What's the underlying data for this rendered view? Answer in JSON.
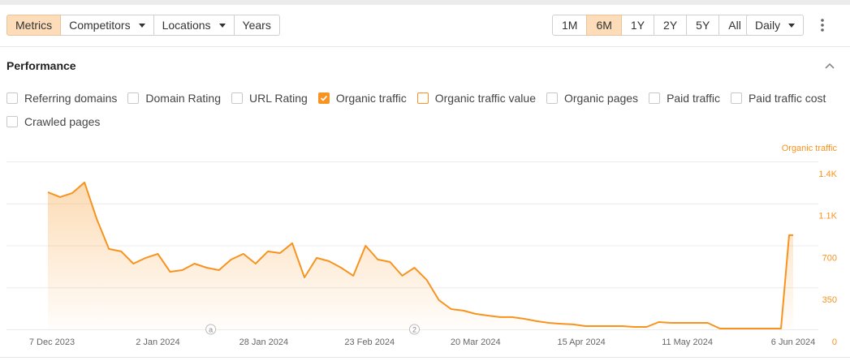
{
  "toolbar": {
    "tabs": [
      {
        "label": "Metrics",
        "active": true
      },
      {
        "label": "Competitors",
        "dropdown": true
      },
      {
        "label": "Locations",
        "dropdown": true
      },
      {
        "label": "Years"
      }
    ],
    "periods": [
      {
        "label": "1M"
      },
      {
        "label": "6M",
        "active": true
      },
      {
        "label": "1Y"
      },
      {
        "label": "2Y"
      },
      {
        "label": "5Y"
      },
      {
        "label": "All"
      }
    ],
    "interval": "Daily"
  },
  "section": {
    "title": "Performance"
  },
  "metrics": [
    {
      "label": "Referring domains",
      "checked": false
    },
    {
      "label": "Domain Rating",
      "checked": false
    },
    {
      "label": "URL Rating",
      "checked": false
    },
    {
      "label": "Organic traffic",
      "checked": true,
      "color": "#f7931e"
    },
    {
      "label": "Organic traffic value",
      "checked": false,
      "color": "#f7931e"
    },
    {
      "label": "Organic pages",
      "checked": false
    },
    {
      "label": "Paid traffic",
      "checked": false
    },
    {
      "label": "Paid traffic cost",
      "checked": false
    },
    {
      "label": "Crawled pages",
      "checked": false
    }
  ],
  "chart_data": {
    "type": "line",
    "y_label": "Organic traffic",
    "grid": true,
    "xlim": [
      "2023-12-06",
      "2024-06-06"
    ],
    "xticks": [
      {
        "value": "2023-12-07",
        "label": "7 Dec 2023"
      },
      {
        "value": "2024-01-02",
        "label": "2 Jan 2024"
      },
      {
        "value": "2024-01-28",
        "label": "28 Jan 2024"
      },
      {
        "value": "2024-02-23",
        "label": "23 Feb 2024"
      },
      {
        "value": "2024-03-20",
        "label": "20 Mar 2024"
      },
      {
        "value": "2024-04-15",
        "label": "15 Apr 2024"
      },
      {
        "value": "2024-05-11",
        "label": "11 May 2024"
      },
      {
        "value": "2024-06-06",
        "label": "6 Jun 2024"
      }
    ],
    "ylim": [
      0,
      1400
    ],
    "yticks": [
      0,
      350,
      700,
      {
        "value": 1050,
        "label": "1.1K"
      },
      {
        "value": 1400,
        "label": "1.4K"
      }
    ],
    "annotations": [
      {
        "x": "2024-01-15",
        "label": "a"
      },
      {
        "x": "2024-03-05",
        "label": "2"
      }
    ],
    "x": [
      "2023-12-06",
      "2023-12-09",
      "2023-12-12",
      "2023-12-15",
      "2023-12-18",
      "2023-12-21",
      "2023-12-24",
      "2023-12-27",
      "2023-12-30",
      "2024-01-02",
      "2024-01-05",
      "2024-01-08",
      "2024-01-11",
      "2024-01-14",
      "2024-01-17",
      "2024-01-20",
      "2024-01-23",
      "2024-01-26",
      "2024-01-29",
      "2024-02-01",
      "2024-02-04",
      "2024-02-07",
      "2024-02-10",
      "2024-02-13",
      "2024-02-16",
      "2024-02-19",
      "2024-02-22",
      "2024-02-25",
      "2024-02-28",
      "2024-03-02",
      "2024-03-05",
      "2024-03-08",
      "2024-03-11",
      "2024-03-14",
      "2024-03-17",
      "2024-03-20",
      "2024-03-23",
      "2024-03-26",
      "2024-03-29",
      "2024-04-01",
      "2024-04-04",
      "2024-04-07",
      "2024-04-10",
      "2024-04-13",
      "2024-04-16",
      "2024-04-19",
      "2024-04-22",
      "2024-04-25",
      "2024-04-28",
      "2024-05-01",
      "2024-05-04",
      "2024-05-07",
      "2024-05-10",
      "2024-05-13",
      "2024-05-16",
      "2024-05-19",
      "2024-05-22",
      "2024-05-25",
      "2024-05-28",
      "2024-05-31",
      "2024-06-03",
      "2024-06-05",
      "2024-06-06"
    ],
    "series": [
      {
        "name": "Organic traffic",
        "color": "#f7931e",
        "values": [
          1144,
          1103,
          1137,
          1225,
          920,
          670,
          650,
          548,
          596,
          630,
          480,
          494,
          548,
          514,
          494,
          582,
          630,
          548,
          650,
          636,
          718,
          433,
          596,
          569,
          514,
          447,
          697,
          582,
          562,
          447,
          514,
          413,
          244,
          169,
          156,
          129,
          115,
          102,
          102,
          88,
          68,
          54,
          47,
          41,
          27,
          27,
          27,
          27,
          20,
          20,
          61,
          54,
          54,
          54,
          54,
          7,
          7,
          7,
          7,
          7,
          7,
          785,
          785
        ]
      }
    ]
  }
}
